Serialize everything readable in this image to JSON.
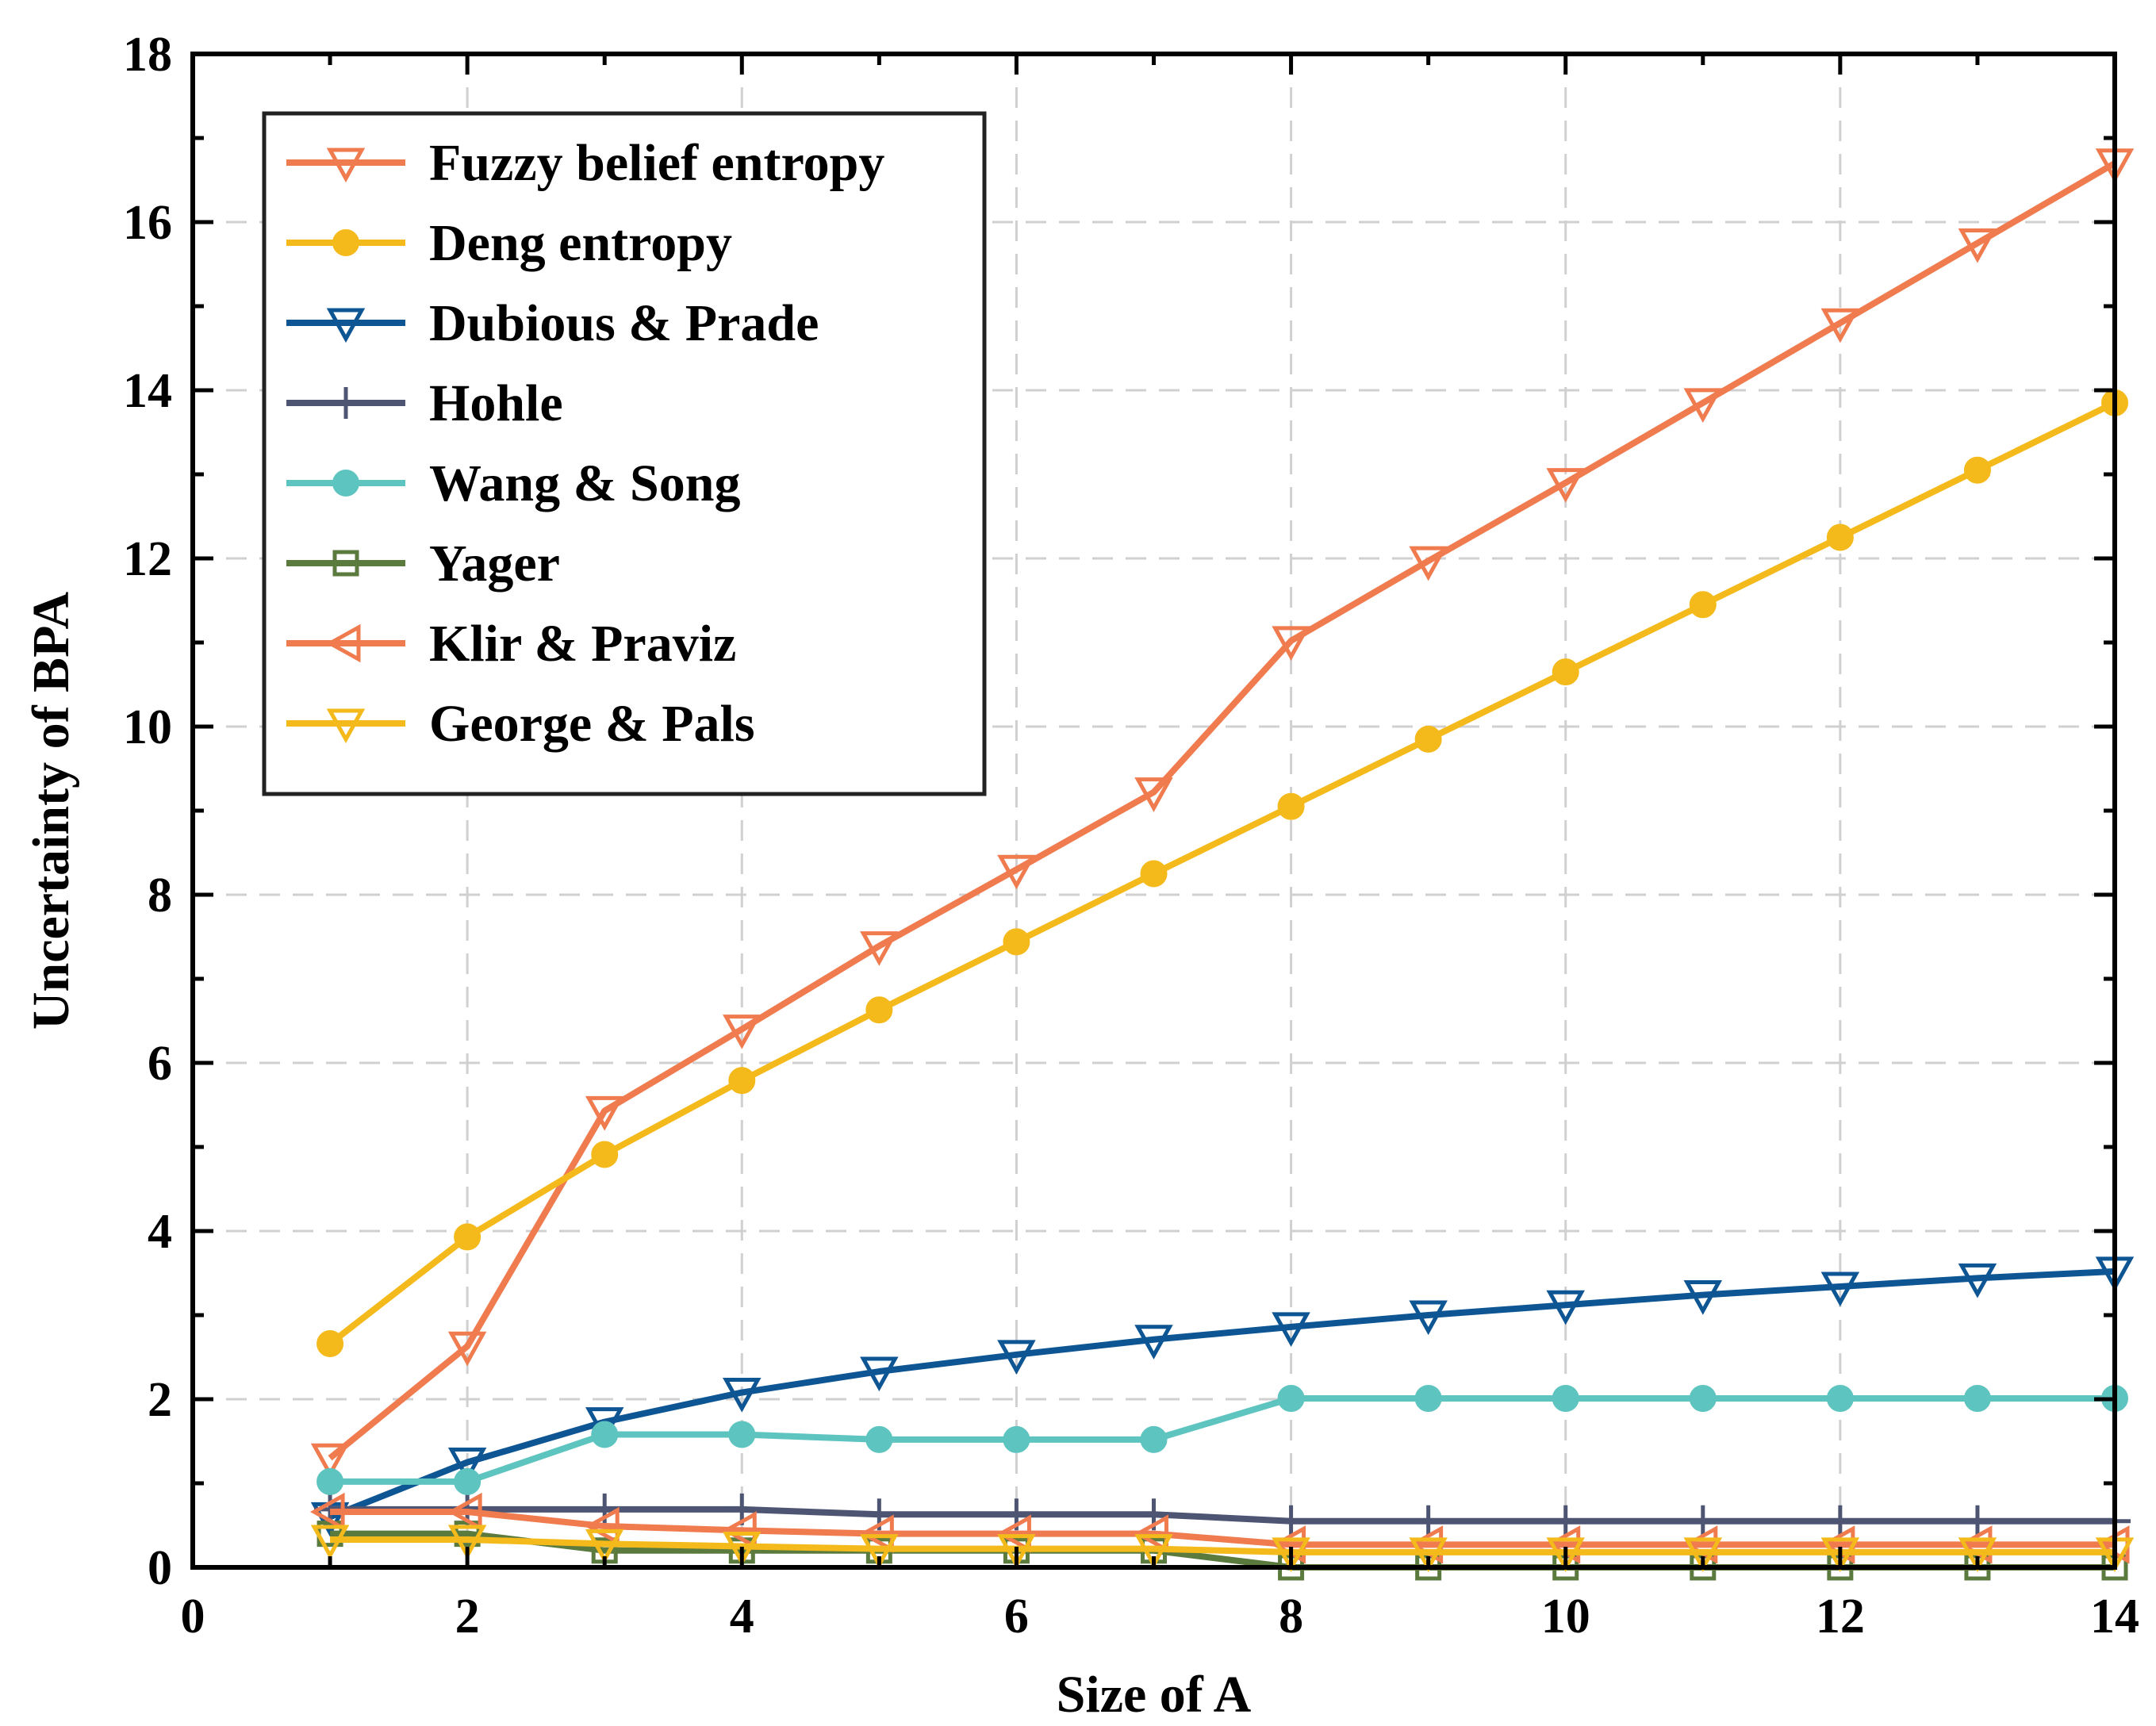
{
  "chart_data": {
    "type": "line",
    "title": "",
    "xlabel": "Size of A",
    "ylabel": "Uncertainty of BPA",
    "xlim": [
      0,
      14
    ],
    "ylim": [
      0,
      18
    ],
    "xticks": [
      0,
      2,
      4,
      6,
      8,
      10,
      12,
      14
    ],
    "yticks": [
      0,
      2,
      4,
      6,
      8,
      10,
      12,
      14,
      16,
      18
    ],
    "grid": true,
    "legend_position": "top-left",
    "x": [
      1,
      2,
      3,
      4,
      5,
      6,
      7,
      8,
      9,
      10,
      11,
      12,
      13,
      14
    ],
    "series": [
      {
        "name": "Fuzzy belief entropy",
        "color": "#EF7B4F",
        "marker": "triangle-down",
        "values": [
          1.3,
          2.63,
          5.43,
          6.4,
          7.39,
          8.3,
          9.22,
          11.02,
          11.97,
          12.9,
          13.85,
          14.8,
          15.75,
          16.7
        ]
      },
      {
        "name": "Deng entropy",
        "color": "#F4BA1B",
        "marker": "circle-filled",
        "values": [
          2.66,
          3.93,
          4.91,
          5.79,
          6.63,
          7.44,
          8.25,
          9.05,
          9.85,
          10.65,
          11.45,
          12.25,
          13.05,
          13.85
        ]
      },
      {
        "name": "Dubious & Prade",
        "color": "#0E5594",
        "marker": "triangle-down",
        "values": [
          0.6,
          1.25,
          1.73,
          2.08,
          2.33,
          2.53,
          2.71,
          2.86,
          3.0,
          3.12,
          3.24,
          3.34,
          3.44,
          3.52
        ]
      },
      {
        "name": "Hohle",
        "color": "#4D5573",
        "marker": "plus",
        "values": [
          0.69,
          0.69,
          0.69,
          0.69,
          0.63,
          0.63,
          0.63,
          0.55,
          0.55,
          0.55,
          0.55,
          0.55,
          0.55,
          0.55
        ]
      },
      {
        "name": "Wang & Song",
        "color": "#5EC4C0",
        "marker": "circle-filled",
        "values": [
          1.02,
          1.02,
          1.58,
          1.58,
          1.52,
          1.52,
          1.52,
          2.01,
          2.01,
          2.01,
          2.01,
          2.01,
          2.01,
          2.01
        ]
      },
      {
        "name": "Yager",
        "color": "#5B7A3D",
        "marker": "square",
        "values": [
          0.4,
          0.4,
          0.2,
          0.2,
          0.2,
          0.2,
          0.2,
          0.0,
          0.0,
          0.0,
          0.0,
          0.0,
          0.0,
          0.0
        ]
      },
      {
        "name": "Klir & Praviz",
        "color": "#EF7B4F",
        "marker": "triangle-left",
        "values": [
          0.66,
          0.66,
          0.49,
          0.44,
          0.4,
          0.4,
          0.4,
          0.27,
          0.27,
          0.27,
          0.27,
          0.27,
          0.27,
          0.27
        ]
      },
      {
        "name": "George & Pals",
        "color": "#F4BA1B",
        "marker": "triangle-down",
        "values": [
          0.33,
          0.33,
          0.28,
          0.25,
          0.22,
          0.22,
          0.22,
          0.18,
          0.18,
          0.18,
          0.18,
          0.18,
          0.18,
          0.18
        ]
      }
    ]
  }
}
